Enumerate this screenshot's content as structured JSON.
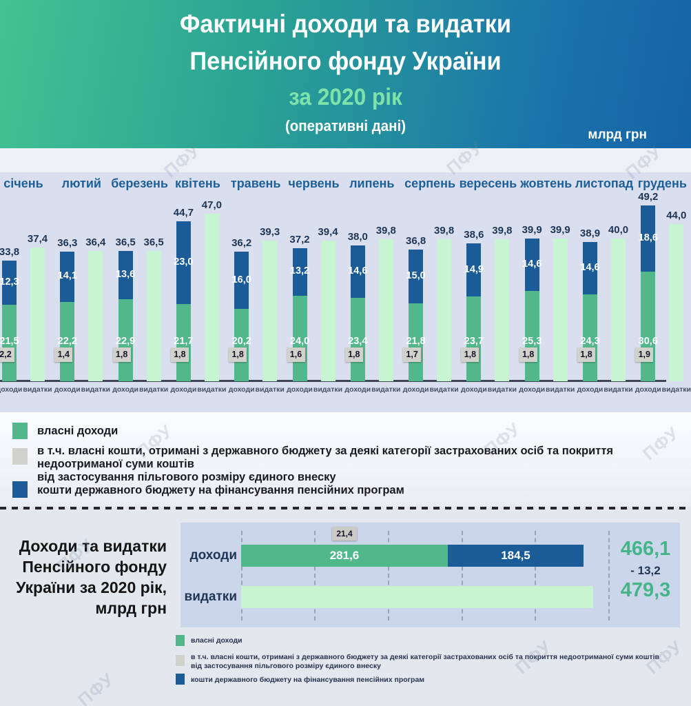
{
  "header": {
    "title_line1": "Фактичні доходи та видатки",
    "title_line2": "Пенсійного фонду України",
    "title_line3": "за 2020 рік",
    "title_line4": "(оперативні дані)",
    "unit": "млрд грн"
  },
  "watermark": "ПФУ",
  "monthly_chart": {
    "income_axis_label": "доходи",
    "expense_axis_label": "видатки",
    "months": [
      {
        "name": "січень",
        "own": "21,5",
        "own_budget": "2,2",
        "state": "12,3",
        "income_total": "33,8",
        "expense": "37,4"
      },
      {
        "name": "лютий",
        "own": "22,2",
        "own_budget": "1,4",
        "state": "14,1",
        "income_total": "36,3",
        "expense": "36,4"
      },
      {
        "name": "березень",
        "own": "22,9",
        "own_budget": "1,8",
        "state": "13,6",
        "income_total": "36,5",
        "expense": "36,5"
      },
      {
        "name": "квітень",
        "own": "21,7",
        "own_budget": "1,8",
        "state": "23,0",
        "income_total": "44,7",
        "expense": "47,0"
      },
      {
        "name": "травень",
        "own": "20,2",
        "own_budget": "1,8",
        "state": "16,0",
        "income_total": "36,2",
        "expense": "39,3"
      },
      {
        "name": "червень",
        "own": "24,0",
        "own_budget": "1,6",
        "state": "13,2",
        "income_total": "37,2",
        "expense": "39,4"
      },
      {
        "name": "липень",
        "own": "23,4",
        "own_budget": "1,8",
        "state": "14,6",
        "income_total": "38,0",
        "expense": "39,8"
      },
      {
        "name": "серпень",
        "own": "21,8",
        "own_budget": "1,7",
        "state": "15,0",
        "income_total": "36,8",
        "expense": "39,8"
      },
      {
        "name": "вересень",
        "own": "23,7",
        "own_budget": "1,8",
        "state": "14,9",
        "income_total": "38,6",
        "expense": "39,8"
      },
      {
        "name": "жовтень",
        "own": "25,3",
        "own_budget": "1,8",
        "state": "14,6",
        "income_total": "39,9",
        "expense": "39,9"
      },
      {
        "name": "листопад",
        "own": "24,3",
        "own_budget": "1,8",
        "state": "14,6",
        "income_total": "38,9",
        "expense": "40,0"
      },
      {
        "name": "грудень",
        "own": "30,6",
        "own_budget": "1,9",
        "state": "18,6",
        "income_total": "49,2",
        "expense": "44,0"
      }
    ]
  },
  "legend": {
    "own_label": "власні доходи",
    "own_budget_line1": "в т.ч. власні кошти, отримані з державного бюджету за деякі категорії застрахованих осіб та покриття недоотриманої суми коштів",
    "own_budget_line2": "від застосування пільгового розміру єдиного внеску",
    "state_label": "кошти державного бюджету на фінансування пенсійних програм"
  },
  "summary": {
    "title_line1": "Доходи та видатки",
    "title_line2": "Пенсійного фонду",
    "title_line3": "України за 2020 рік,",
    "title_line4": "млрд грн",
    "income_label": "доходи",
    "expense_label": "видатки",
    "own": "281,6",
    "state": "184,5",
    "own_budget": "21,4",
    "income_total": "466,1",
    "difference": "- 13,2",
    "expense_total": "479,3"
  },
  "colors": {
    "own_income": "#52b78a",
    "state_budget": "#1b5b97",
    "expenses": "#c8f5d1",
    "own_budget_badge": "#d2d2cd",
    "accent_green": "#45b489",
    "dark_navy": "#1f3554",
    "month_label": "#1e5f98"
  },
  "chart_data": [
    {
      "type": "bar",
      "title": "Фактичні доходи та видатки Пенсійного фонду України за 2020 рік (оперативні дані), млрд грн",
      "categories": [
        "січень",
        "лютий",
        "березень",
        "квітень",
        "травень",
        "червень",
        "липень",
        "серпень",
        "вересень",
        "жовтень",
        "листопад",
        "грудень"
      ],
      "series": [
        {
          "name": "власні доходи",
          "values": [
            21.5,
            22.2,
            22.9,
            21.7,
            20.2,
            24.0,
            23.4,
            21.8,
            23.7,
            25.3,
            24.3,
            30.6
          ]
        },
        {
          "name": "в т.ч. власні кошти, отримані з державного бюджету за деякі категорії застрахованих осіб та покриття недоотриманої суми коштів від застосування пільгового розміру єдиного внеску",
          "values": [
            2.2,
            1.4,
            1.8,
            1.8,
            1.8,
            1.6,
            1.8,
            1.7,
            1.8,
            1.8,
            1.8,
            1.9
          ]
        },
        {
          "name": "кошти державного бюджету на фінансування пенсійних програм",
          "values": [
            12.3,
            14.1,
            13.6,
            23.0,
            16.0,
            13.2,
            14.6,
            15.0,
            14.9,
            14.6,
            14.6,
            18.6
          ]
        },
        {
          "name": "доходи (разом)",
          "values": [
            33.8,
            36.3,
            36.5,
            44.7,
            36.2,
            37.2,
            38.0,
            36.8,
            38.6,
            39.9,
            38.9,
            49.2
          ]
        },
        {
          "name": "видатки",
          "values": [
            37.4,
            36.4,
            36.5,
            47.0,
            39.3,
            39.4,
            39.8,
            39.8,
            39.8,
            39.9,
            40.0,
            44.0
          ]
        }
      ],
      "ylim": [
        0,
        50
      ],
      "grid": false,
      "legend_position": "bottom"
    },
    {
      "type": "bar",
      "orientation": "horizontal",
      "title": "Доходи та видатки Пенсійного фонду України за 2020 рік, млрд грн",
      "categories": [
        "доходи",
        "видатки"
      ],
      "series": [
        {
          "name": "власні доходи",
          "values": [
            281.6,
            null
          ]
        },
        {
          "name": "в т.ч. власні кошти, отримані з державного бюджету",
          "values": [
            21.4,
            null
          ]
        },
        {
          "name": "кошти державного бюджету на фінансування пенсійних програм",
          "values": [
            184.5,
            null
          ]
        },
        {
          "name": "разом",
          "values": [
            466.1,
            479.3
          ]
        }
      ],
      "annotations": [
        "466,1",
        "- 13,2",
        "479,3"
      ],
      "difference": -13.2,
      "xlim": [
        0,
        500
      ],
      "grid": true
    }
  ]
}
